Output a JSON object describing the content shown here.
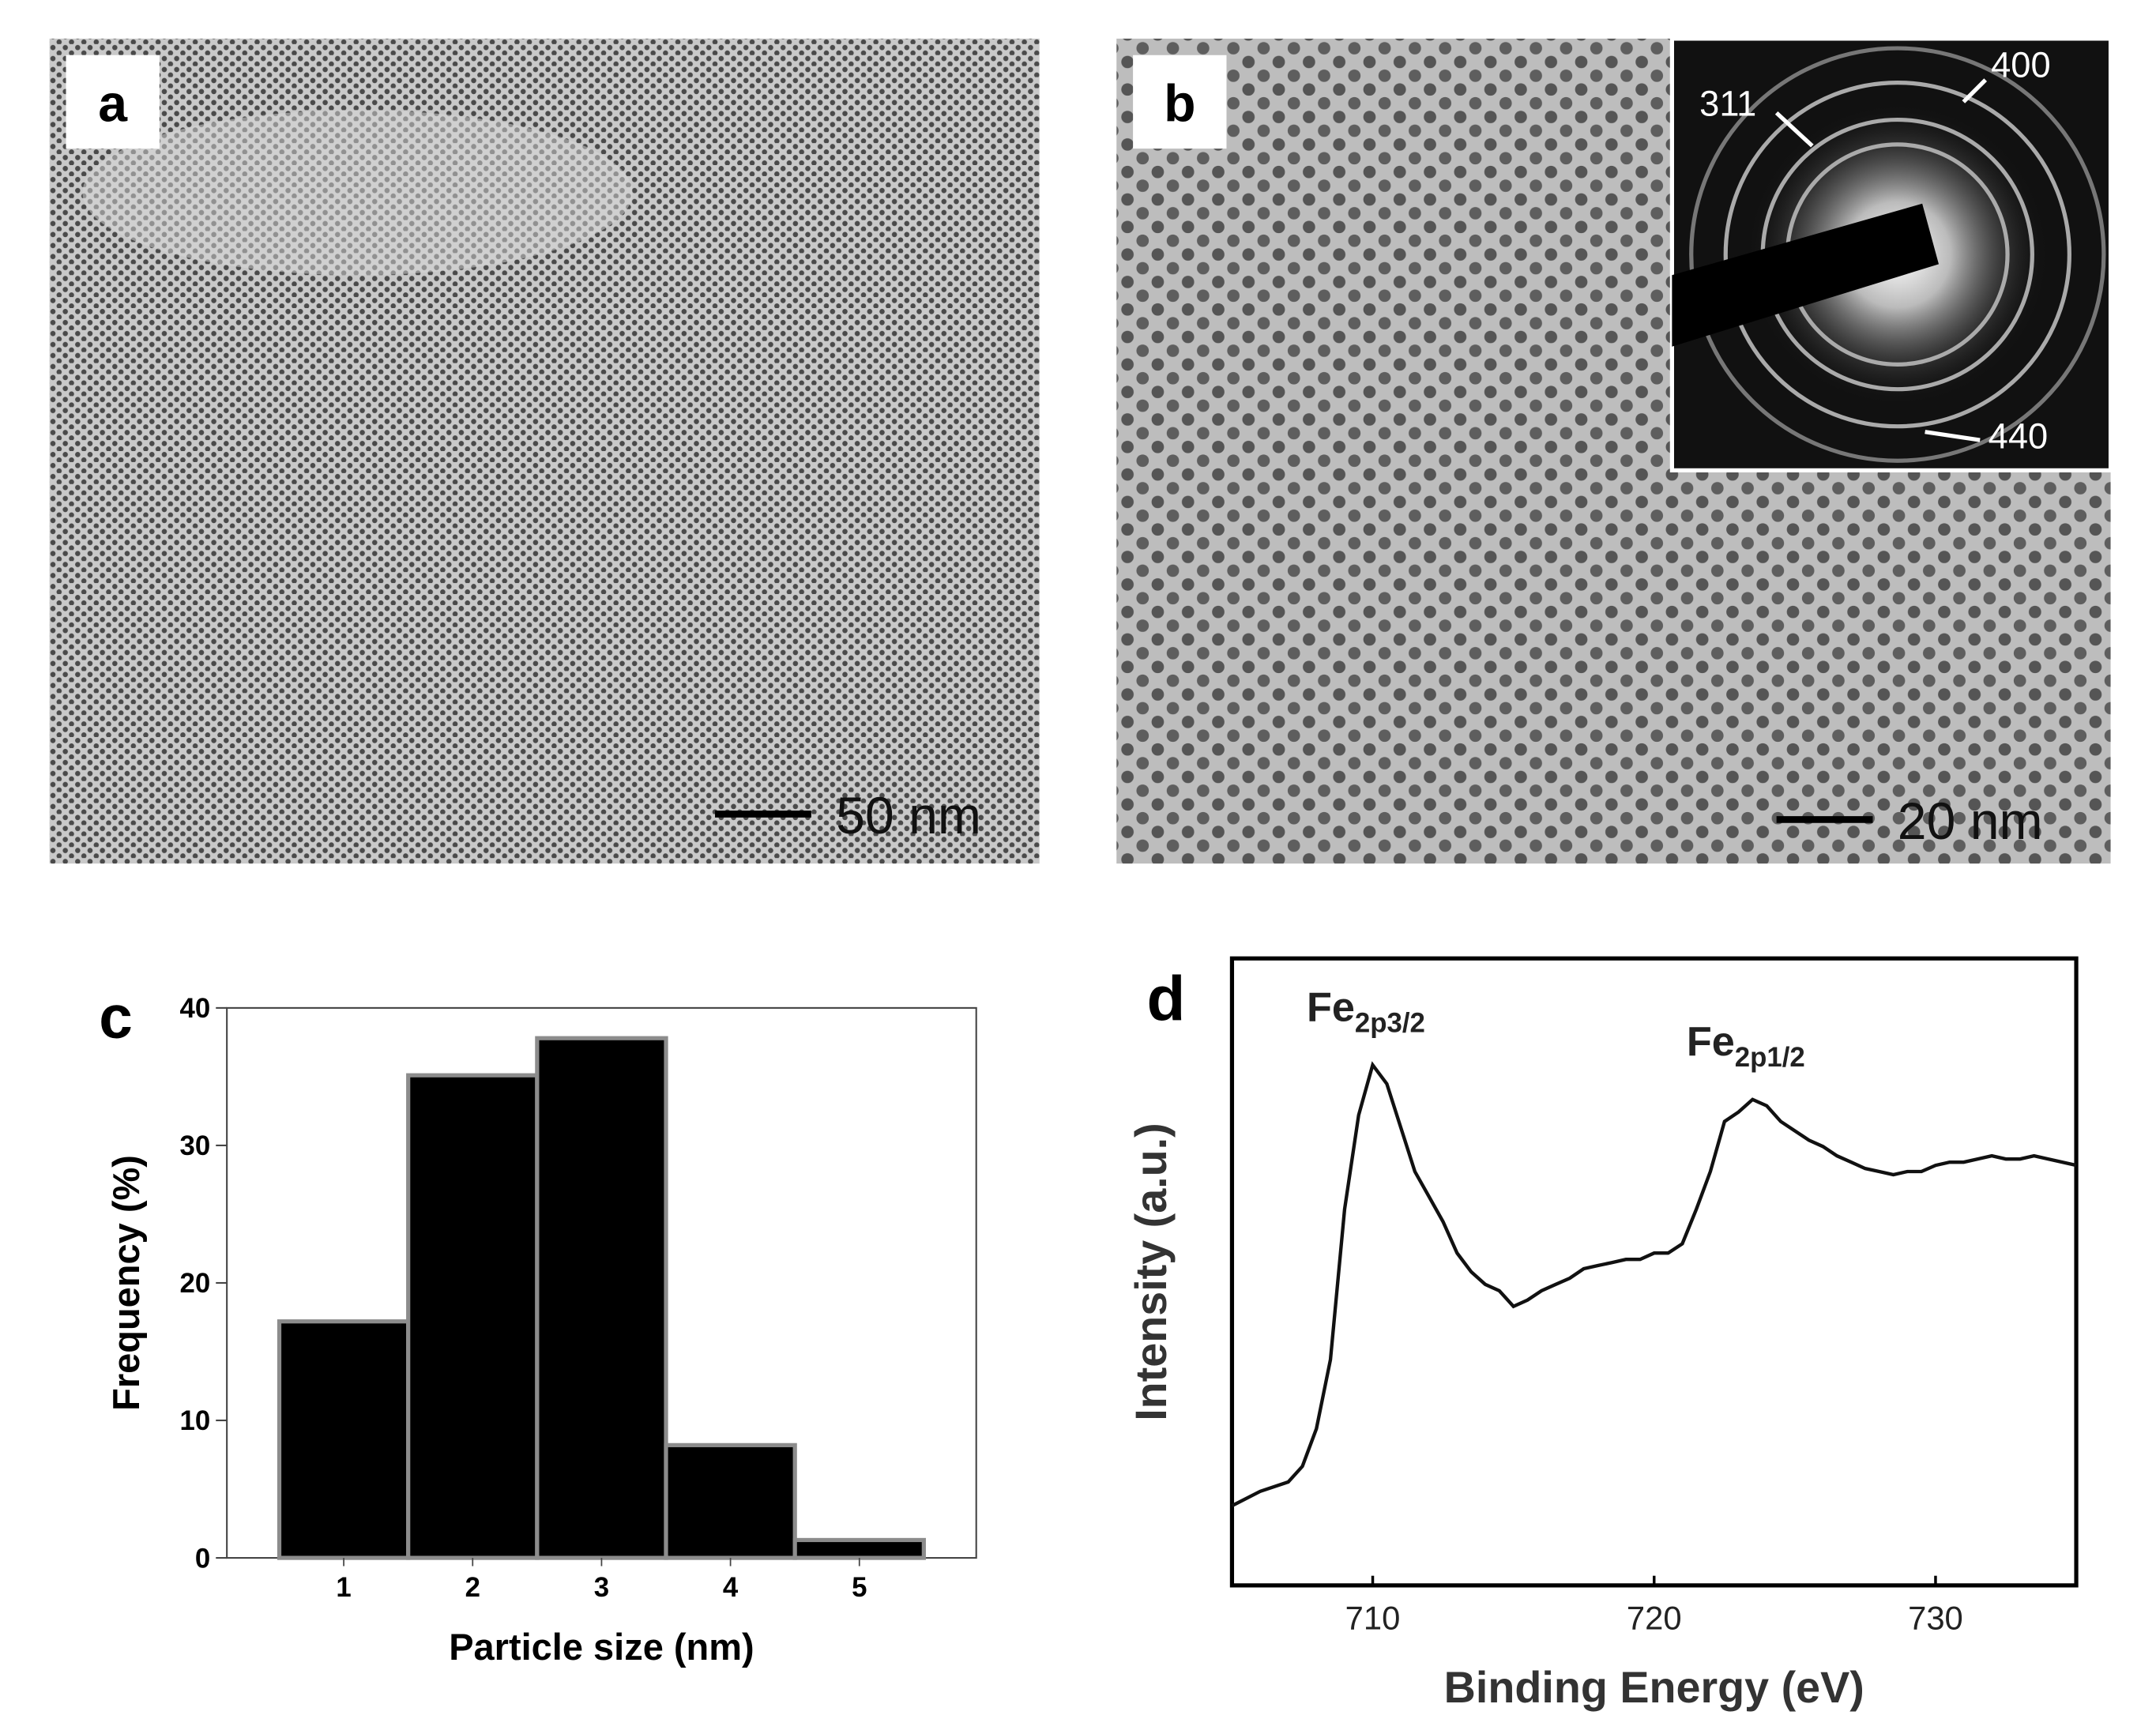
{
  "images": [
    {
      "panel_label": "a",
      "scale_bar": "50 nm"
    },
    {
      "panel_label": "b",
      "scale_bar": "20 nm",
      "inset_labels": [
        "311",
        "400",
        "440"
      ]
    }
  ],
  "chart_data": [
    {
      "type": "bar",
      "panel_label": "c",
      "categories": [
        "1",
        "2",
        "3",
        "4",
        "5"
      ],
      "values": [
        17.2,
        35.1,
        37.8,
        8.2,
        1.3
      ],
      "color": "#000000",
      "edge_color": "#8c8c8c",
      "ylim": [
        0,
        40
      ],
      "yticks": [
        0,
        10,
        20,
        30,
        40
      ],
      "xlabel": "Particle size (nm)",
      "ylabel": "Frequency (%)"
    },
    {
      "type": "line",
      "panel_label": "d",
      "color": "#111111",
      "xlabel": "Binding Energy (eV)",
      "ylabel": "Intensity (a.u.)",
      "xlim": [
        705,
        735
      ],
      "xticks": [
        710,
        720,
        730
      ],
      "ylim": [
        0,
        100
      ],
      "annotations": [
        {
          "text": "Fe",
          "sub": "2p3/2",
          "x": 710
        },
        {
          "text": "Fe",
          "sub": "2p1/2",
          "x": 723.5
        }
      ],
      "x": [
        705,
        706,
        707,
        707.5,
        708,
        708.5,
        709,
        709.5,
        710,
        710.5,
        711,
        711.5,
        712,
        712.5,
        713,
        713.5,
        714,
        714.5,
        715,
        715.5,
        716,
        716.5,
        717,
        717.5,
        718,
        718.5,
        719,
        719.5,
        720,
        720.5,
        721,
        721.5,
        722,
        722.5,
        723,
        723.5,
        724,
        724.5,
        725,
        725.5,
        726,
        726.5,
        727,
        727.5,
        728,
        728.5,
        729,
        729.5,
        730,
        730.5,
        731,
        731.5,
        732,
        732.5,
        733,
        733.5,
        734,
        734.5,
        735
      ],
      "values": [
        12.7,
        15,
        16.5,
        19,
        25,
        36,
        60,
        75,
        83,
        80,
        73,
        66,
        62,
        58,
        53,
        50,
        48,
        47,
        44.5,
        45.5,
        47,
        48,
        49,
        50.5,
        51,
        51.5,
        52,
        52,
        53,
        53,
        54.5,
        60,
        66,
        74,
        75.5,
        77.5,
        76.5,
        74,
        72.5,
        71,
        70,
        68.5,
        67.5,
        66.5,
        66,
        65.5,
        66,
        66,
        67,
        67.5,
        67.5,
        68,
        68.5,
        68,
        68,
        68.5,
        68,
        67.5,
        67
      ]
    }
  ]
}
